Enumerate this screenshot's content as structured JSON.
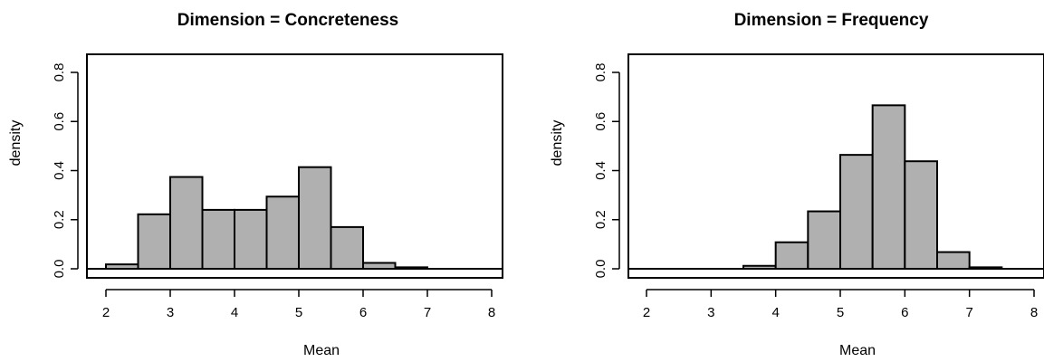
{
  "chart_data": [
    {
      "type": "bar",
      "title": "Dimension = Concreteness",
      "xlabel": "Mean",
      "ylabel": "density",
      "bin_edges": [
        2.0,
        2.5,
        3.0,
        3.5,
        4.0,
        4.5,
        5.0,
        5.5,
        6.0,
        6.5,
        7.0,
        7.5,
        8.0
      ],
      "values": [
        0.018,
        0.222,
        0.374,
        0.24,
        0.24,
        0.294,
        0.414,
        0.17,
        0.024,
        0.006,
        0.0,
        0.0
      ],
      "xlim": [
        2,
        8
      ],
      "ylim": [
        0,
        0.8
      ],
      "xticks": [
        2,
        3,
        4,
        5,
        6,
        7,
        8
      ],
      "yticks": [
        "0.0",
        "0.2",
        "0.4",
        "0.6",
        "0.8"
      ],
      "bar_color": "#b0b0b0"
    },
    {
      "type": "bar",
      "title": "Dimension = Frequency",
      "xlabel": "Mean",
      "ylabel": "density",
      "bin_edges": [
        2.0,
        2.5,
        3.0,
        3.5,
        4.0,
        4.5,
        5.0,
        5.5,
        6.0,
        6.5,
        7.0,
        7.5,
        8.0
      ],
      "values": [
        0.0,
        0.0,
        0.0,
        0.012,
        0.108,
        0.234,
        0.464,
        0.666,
        0.438,
        0.068,
        0.006,
        0.0
      ],
      "xlim": [
        2,
        8
      ],
      "ylim": [
        0,
        0.8
      ],
      "xticks": [
        2,
        3,
        4,
        5,
        6,
        7,
        8
      ],
      "yticks": [
        "0.0",
        "0.2",
        "0.4",
        "0.6",
        "0.8"
      ],
      "bar_color": "#b0b0b0"
    }
  ]
}
